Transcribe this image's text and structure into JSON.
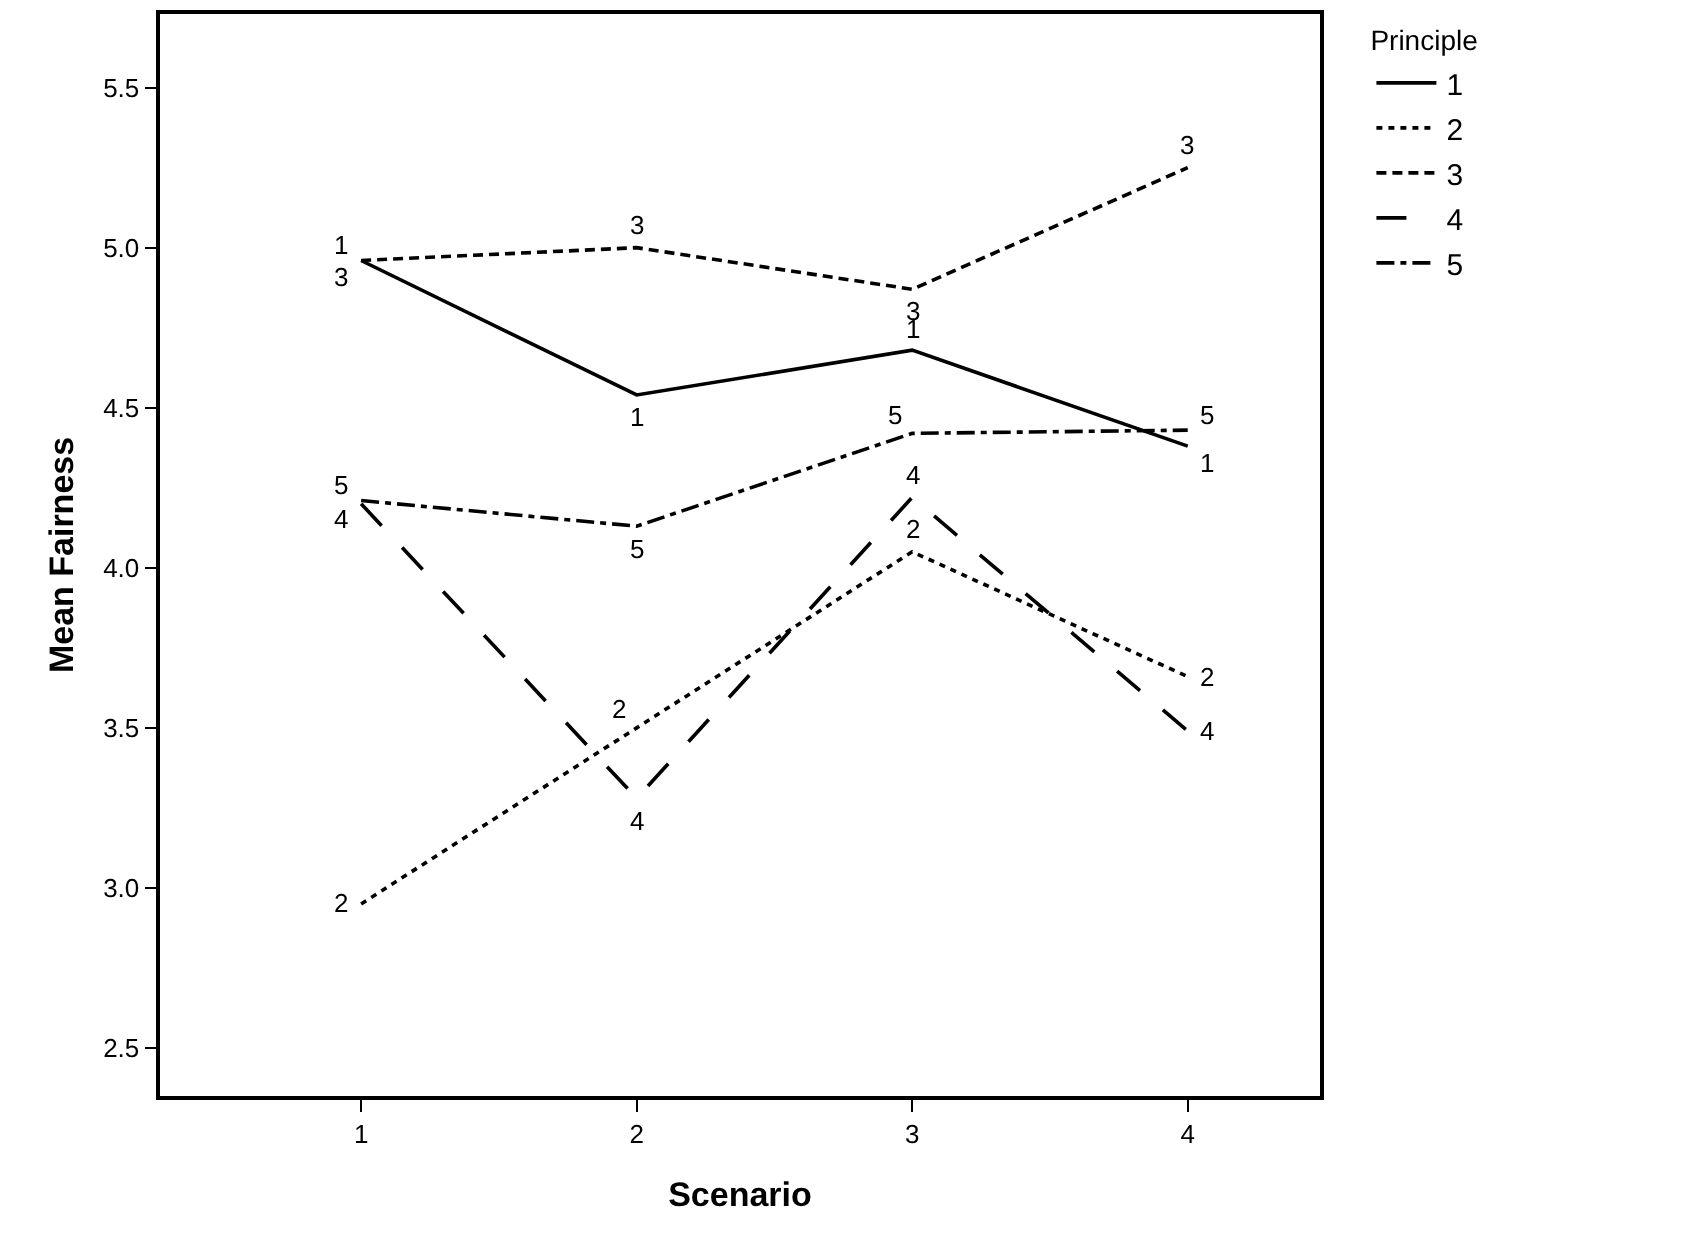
{
  "chart_data": {
    "type": "line",
    "xlabel": "Scenario",
    "ylabel": "Mean Fairness",
    "legend_title": "Principle",
    "x": [
      1,
      2,
      3,
      4
    ],
    "xlim": [
      0.27,
      4.48
    ],
    "xticks": [
      1,
      2,
      3,
      4
    ],
    "ylim": [
      2.35,
      5.73
    ],
    "yticks": [
      {
        "value": 2.5,
        "label": "2.5"
      },
      {
        "value": 3,
        "label": "3.0"
      },
      {
        "value": 3.5,
        "label": "3.5"
      },
      {
        "value": 4,
        "label": "4.0"
      },
      {
        "value": 4.5,
        "label": "4.5"
      },
      {
        "value": 5,
        "label": "5.0"
      },
      {
        "value": 5.5,
        "label": "5.5"
      }
    ],
    "grid": false,
    "legend": "top right",
    "marker": "none",
    "series": [
      {
        "name": "1",
        "color": "#000000",
        "line_style": "solid",
        "values": [
          4.96,
          4.54,
          4.68,
          4.38
        ]
      },
      {
        "name": "2",
        "color": "#000000",
        "line_style": "dotted",
        "values": [
          2.95,
          3.5,
          4.05,
          3.66
        ]
      },
      {
        "name": "3",
        "color": "#000000",
        "line_style": "dashed",
        "values": [
          4.96,
          5.0,
          4.87,
          5.25
        ]
      },
      {
        "name": "4",
        "color": "#000000",
        "line_style": "longdash",
        "values": [
          4.2,
          3.28,
          4.22,
          3.49
        ]
      },
      {
        "name": "5",
        "color": "#000000",
        "line_style": "dashdot",
        "values": [
          4.21,
          4.13,
          4.42,
          4.43
        ]
      }
    ]
  }
}
